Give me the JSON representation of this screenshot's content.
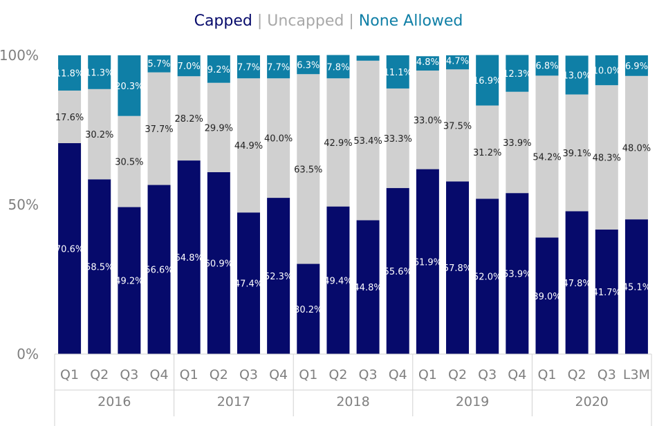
{
  "chart_data": {
    "type": "bar",
    "stacked": true,
    "percent_scale": true,
    "legend": {
      "position": "top",
      "separator": "|",
      "items": [
        {
          "name": "Capped",
          "color": "#060a6b"
        },
        {
          "name": "Uncapped",
          "color": "#a8a8a8"
        },
        {
          "name": "None Allowed",
          "color": "#0f7fa6"
        }
      ]
    },
    "ylim": [
      0,
      100
    ],
    "yticks": [
      "0%",
      "50%",
      "100%"
    ],
    "groups": [
      {
        "label": "2016",
        "categories": [
          "Q1",
          "Q2",
          "Q3",
          "Q4"
        ]
      },
      {
        "label": "2017",
        "categories": [
          "Q1",
          "Q2",
          "Q3",
          "Q4"
        ]
      },
      {
        "label": "2018",
        "categories": [
          "Q1",
          "Q2",
          "Q3",
          "Q4"
        ]
      },
      {
        "label": "2019",
        "categories": [
          "Q1",
          "Q2",
          "Q3",
          "Q4"
        ]
      },
      {
        "label": "2020",
        "categories": [
          "Q1",
          "Q2",
          "Q3",
          "L3M"
        ]
      }
    ],
    "series": [
      {
        "name": "Capped",
        "color": "#060a6b",
        "label_color": "#ffffff",
        "values": [
          70.6,
          58.5,
          49.2,
          56.6,
          64.8,
          60.9,
          47.4,
          52.3,
          30.2,
          49.4,
          44.8,
          55.6,
          61.9,
          57.8,
          52.0,
          53.9,
          39.0,
          47.8,
          41.7,
          45.1
        ]
      },
      {
        "name": "Uncapped",
        "color": "#d0d0d0",
        "label_color": "#222222",
        "values": [
          17.6,
          30.2,
          30.5,
          37.7,
          28.2,
          29.9,
          44.9,
          40.0,
          63.5,
          42.9,
          53.4,
          33.3,
          33.0,
          37.5,
          31.2,
          33.9,
          54.2,
          39.1,
          48.3,
          48.0
        ]
      },
      {
        "name": "None Allowed",
        "color": "#0f7fa6",
        "label_color": "#ffffff",
        "values": [
          11.8,
          11.3,
          20.3,
          5.7,
          7.0,
          9.2,
          7.7,
          7.7,
          6.3,
          7.8,
          1.7,
          11.1,
          4.8,
          4.7,
          16.9,
          12.3,
          6.8,
          13.0,
          10.0,
          6.9
        ]
      }
    ]
  }
}
